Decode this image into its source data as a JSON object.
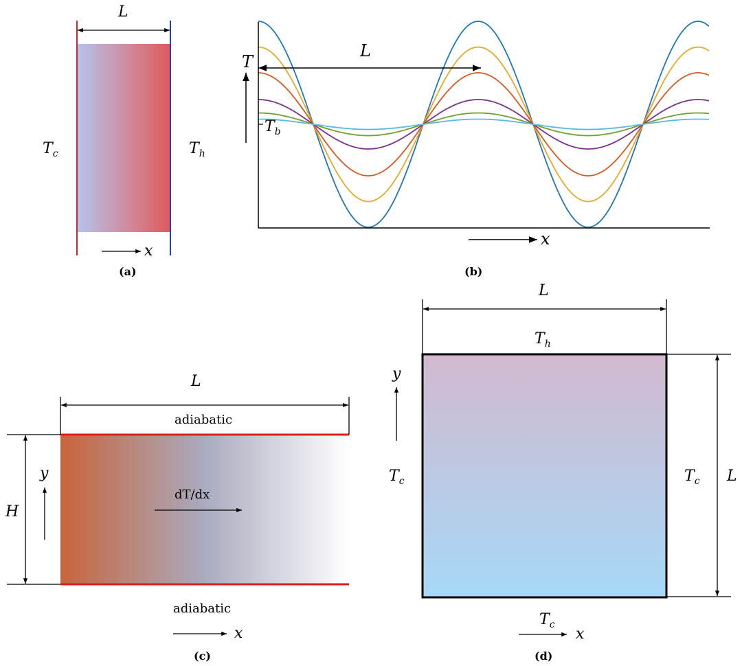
{
  "panel_a": {
    "caption": "(a)",
    "length_label": "L",
    "left_temp": {
      "sym": "T",
      "sub": "c"
    },
    "right_temp": {
      "sym": "T",
      "sub": "h"
    },
    "axis_label": "x",
    "colors": {
      "left_wall": "#d62728",
      "right_wall": "#1f3fd0",
      "gradient_start": "#b4c3ec",
      "gradient_end": "#de5a5e"
    }
  },
  "panel_b": {
    "caption": "(b)",
    "length_label": "L",
    "t_axis_label": "T",
    "base_temp": {
      "sym": "T",
      "sub": "b"
    },
    "axis_label": "x",
    "curve_colors": [
      "#1f77b4",
      "#e6a82a",
      "#d35a1f",
      "#7b2e8e",
      "#6aa132",
      "#5bb8e0"
    ],
    "amplitudes": [
      1.0,
      0.75,
      0.5,
      0.24,
      0.11,
      0.05
    ]
  },
  "panel_c": {
    "caption": "(c)",
    "length_label": "L",
    "height_label": "H",
    "top_label": "adiabatic",
    "bottom_label": "adiabatic",
    "gradient_label": "dT/dx",
    "y_label": "y",
    "x_label": "x",
    "colors": {
      "walls": "#e41a1c",
      "gradient_start": "#c8643c",
      "gradient_mid": "#a9abbf",
      "gradient_end": "#ffffff"
    }
  },
  "panel_d": {
    "caption": "(d)",
    "length_label_top": "L",
    "length_label_side": "L",
    "top_temp": {
      "sym": "T",
      "sub": "h"
    },
    "left_temp": {
      "sym": "T",
      "sub": "c"
    },
    "right_temp": {
      "sym": "T",
      "sub": "c"
    },
    "bottom_temp": {
      "sym": "T",
      "sub": "c"
    },
    "y_label": "y",
    "x_label": "x",
    "colors": {
      "gradient_top": "#d2b9cf",
      "gradient_bottom": "#a6d9f7"
    }
  }
}
